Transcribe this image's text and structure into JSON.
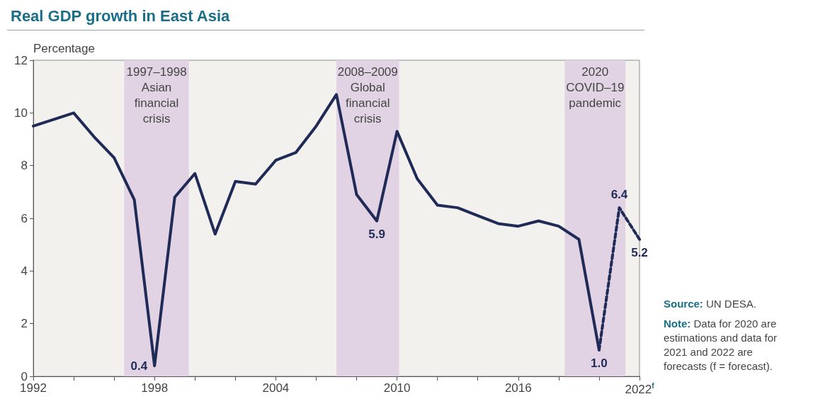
{
  "chart_data": {
    "type": "line",
    "title": "Real GDP growth in East Asia",
    "ylabel": "Percentage",
    "xlim": [
      1992,
      2022
    ],
    "ylim": [
      0,
      12
    ],
    "xticks": [
      1992,
      {
        "value": 1994,
        "label": null
      },
      {
        "value": 1996,
        "label": null
      },
      1998,
      {
        "value": 2000,
        "label": null
      },
      {
        "value": 2002,
        "label": null
      },
      2004,
      {
        "value": 2006,
        "label": null
      },
      {
        "value": 2008,
        "label": null
      },
      2010,
      {
        "value": 2012,
        "label": null
      },
      {
        "value": 2014,
        "label": null
      },
      2016,
      {
        "value": 2018,
        "label": null
      },
      {
        "value": 2020,
        "label": null
      },
      {
        "value": 2022,
        "label": "2022$^{f}$"
      }
    ],
    "yticks": [
      0,
      2,
      4,
      6,
      8,
      10,
      12
    ],
    "grid": false,
    "marker": "none",
    "series": [
      {
        "color": "#1f2a56",
        "line_style": "solid",
        "x": [
          1992,
          1994,
          1995,
          1996,
          1997,
          1998,
          1999,
          2000,
          2001,
          2002,
          2003,
          2004,
          2005,
          2006,
          2007,
          2008,
          2009,
          2010,
          2011,
          2012,
          2013,
          2014,
          2015,
          2016,
          2017,
          2018,
          2019,
          2020
        ],
        "values": [
          9.5,
          10.0,
          9.1,
          8.3,
          6.7,
          0.4,
          6.8,
          7.7,
          5.4,
          7.4,
          7.3,
          8.2,
          8.5,
          9.5,
          10.7,
          6.9,
          5.9,
          9.3,
          7.5,
          6.5,
          6.4,
          6.1,
          5.8,
          5.7,
          5.9,
          5.7,
          5.2,
          1.0
        ],
        "value_labels": [
          null,
          null,
          null,
          null,
          null,
          "0.4",
          null,
          null,
          null,
          null,
          null,
          null,
          null,
          null,
          null,
          null,
          "5.9",
          null,
          null,
          null,
          null,
          null,
          null,
          null,
          null,
          null,
          null,
          "1.0"
        ]
      },
      {
        "color": "#1f2a56",
        "line_style": "dashed",
        "x": [
          2020,
          2021,
          2022
        ],
        "values": [
          1.0,
          6.4,
          5.2
        ],
        "value_labels": [
          null,
          "6.4",
          "5.2"
        ]
      }
    ],
    "bands": [
      {
        "axis": "x",
        "from": 1996.5,
        "to": 1999.7,
        "label": "1997–1998 Asian financial crisis",
        "color": "#e1d3e3"
      },
      {
        "axis": "x",
        "from": 2007.0,
        "to": 2010.1,
        "label": "2008–2009 Global financial crisis",
        "color": "#e1d3e3"
      },
      {
        "axis": "x",
        "from": 2018.3,
        "to": 2021.3,
        "label": "2020 COVID–19 pandemic",
        "color": "#e1d3e3"
      }
    ],
    "annotations": [
      "Source: UN DESA.",
      "Note: Data for 2020 are estimations and data for 2021 and 2022 are forecasts (f = forecast)."
    ]
  }
}
